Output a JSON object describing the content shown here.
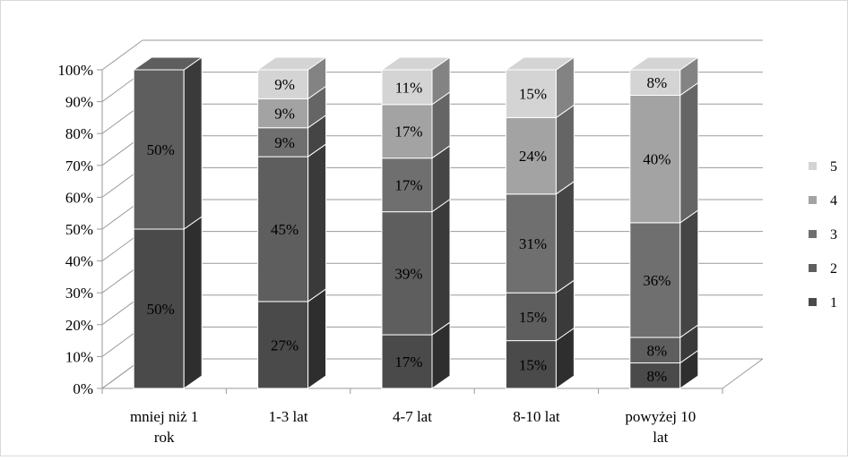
{
  "chart_data": {
    "type": "bar",
    "stacked": true,
    "percent": true,
    "style": "3d-stacked-column",
    "categories": [
      [
        "mniej niż 1",
        "rok"
      ],
      [
        "1-3 lat"
      ],
      [
        "4-7 lat"
      ],
      [
        "8-10 lat"
      ],
      [
        "powyżej 10",
        "lat"
      ]
    ],
    "series": [
      {
        "name": "1",
        "values": [
          50,
          27,
          17,
          15,
          8
        ],
        "labels": [
          "50%",
          "27%",
          "17%",
          "15%",
          "8%"
        ],
        "color": "#4a4a4a"
      },
      {
        "name": "2",
        "values": [
          50,
          45,
          39,
          15,
          8
        ],
        "labels": [
          "50%",
          "45%",
          "39%",
          "15%",
          "8%"
        ],
        "color": "#5e5e5e"
      },
      {
        "name": "3",
        "values": [
          0,
          9,
          17,
          31,
          36
        ],
        "labels": [
          "",
          "9%",
          "17%",
          "31%",
          "36%"
        ],
        "color": "#6f6f6f"
      },
      {
        "name": "4",
        "values": [
          0,
          9,
          17,
          24,
          40
        ],
        "labels": [
          "",
          "9%",
          "17%",
          "24%",
          "40%"
        ],
        "color": "#a3a3a3"
      },
      {
        "name": "5",
        "values": [
          0,
          9,
          11,
          15,
          8
        ],
        "labels": [
          "",
          "9%",
          "11%",
          "15%",
          "8%"
        ],
        "color": "#d4d4d4"
      }
    ],
    "yticks": [
      "0%",
      "10%",
      "20%",
      "30%",
      "40%",
      "50%",
      "60%",
      "70%",
      "80%",
      "90%",
      "100%"
    ],
    "ylim": [
      0,
      100
    ],
    "grid": true,
    "legend": "right"
  }
}
